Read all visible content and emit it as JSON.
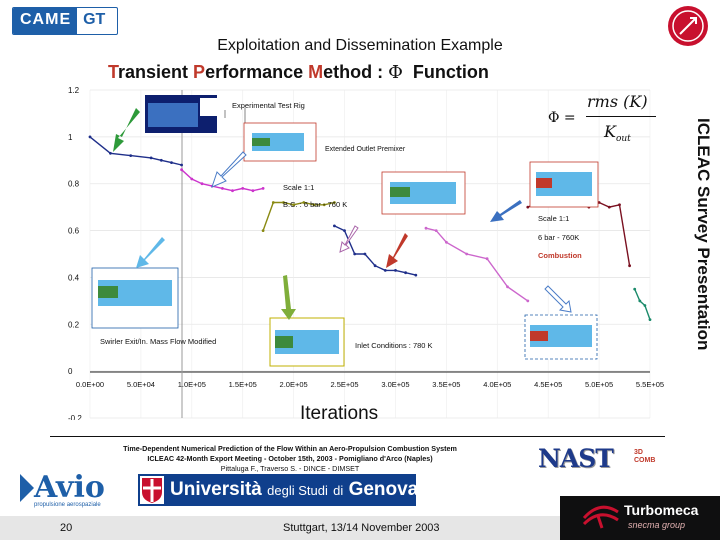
{
  "header": {
    "logo_left": "CAME",
    "logo_right": "GT",
    "slide_title": "Exploitation and Dissemination Example",
    "method_title": {
      "word1_initial": "T",
      "word1_rest": "ransient ",
      "word2_initial": "P",
      "word2_rest": "erformance ",
      "word3_initial": "M",
      "word3_rest": "ethod : ",
      "symbol": "Φ",
      "suffix": "Function"
    },
    "side_title": "ICLEAC Survey Presentation"
  },
  "formula": {
    "lhs": "Φ =",
    "numerator": "rms (K)",
    "denominator": "K",
    "denominator_sub": "out"
  },
  "chart_data": {
    "type": "line",
    "xlabel": "Iterations",
    "xlim": [
      0,
      550000
    ],
    "ylim": [
      -0.2,
      1.2
    ],
    "x_ticks": [
      "0.0E+00",
      "5.0E+04",
      "1.0E+05",
      "1.5E+05",
      "2.0E+05",
      "2.5E+05",
      "3.0E+05",
      "3.5E+05",
      "4.0E+05",
      "4.5E+05",
      "5.0E+05",
      "5.5E+05"
    ],
    "y_ticks": [
      "1.2",
      "1",
      "0.8",
      "0.6",
      "0.4",
      "0.2",
      "0",
      "-0.2"
    ],
    "y_tick_values": [
      1.2,
      1.0,
      0.8,
      0.6,
      0.4,
      0.2,
      0,
      -0.2
    ],
    "colors": {
      "seg1": "#1f2f8a",
      "seg2": "#cc33cc",
      "seg3": "#8a8a12",
      "seg4": "#1f2f8a",
      "seg5": "#cc66cc",
      "seg6": "#7a1020",
      "seg7": "#1a8a6a"
    },
    "series": [
      {
        "id": "seg1",
        "x": [
          0,
          20000,
          40000,
          60000,
          70000,
          80000,
          90000
        ],
        "y": [
          1.0,
          0.93,
          0.92,
          0.91,
          0.9,
          0.89,
          0.88
        ]
      },
      {
        "id": "seg2",
        "x": [
          90000,
          100000,
          110000,
          120000,
          130000,
          140000,
          150000,
          160000,
          170000
        ],
        "y": [
          0.86,
          0.82,
          0.8,
          0.79,
          0.78,
          0.77,
          0.78,
          0.77,
          0.78
        ]
      },
      {
        "id": "seg3",
        "x": [
          170000,
          180000,
          190000,
          200000,
          210000,
          220000,
          230000,
          240000
        ],
        "y": [
          0.6,
          0.72,
          0.72,
          0.71,
          0.72,
          0.71,
          0.71,
          0.72
        ]
      },
      {
        "id": "seg4",
        "x": [
          240000,
          250000,
          260000,
          270000,
          280000,
          290000,
          300000,
          310000,
          320000
        ],
        "y": [
          0.62,
          0.6,
          0.5,
          0.5,
          0.45,
          0.43,
          0.43,
          0.42,
          0.41
        ]
      },
      {
        "id": "seg5",
        "x": [
          330000,
          340000,
          350000,
          370000,
          390000,
          410000,
          430000
        ],
        "y": [
          0.61,
          0.6,
          0.55,
          0.5,
          0.48,
          0.36,
          0.3
        ]
      },
      {
        "id": "seg6",
        "x": [
          430000,
          440000,
          450000,
          460000,
          470000,
          480000,
          490000,
          500000,
          510000,
          520000,
          530000
        ],
        "y": [
          0.7,
          0.72,
          0.74,
          0.71,
          0.73,
          0.72,
          0.7,
          0.72,
          0.7,
          0.71,
          0.45
        ]
      },
      {
        "id": "seg7",
        "x": [
          535000,
          540000,
          545000,
          550000
        ],
        "y": [
          0.35,
          0.3,
          0.28,
          0.22
        ]
      }
    ],
    "annotations": [
      "Experimental Test Rig",
      "Extended Outlet Premixer",
      "Scale 1:1",
      "B.C. : 6 bar - 760 K",
      "Scale 1:1",
      "6 bar - 760K",
      "Combustion",
      "Swirler Exit/In. Mass Flow Modified",
      "Inlet Conditions : 780 K"
    ]
  },
  "footer": {
    "paper_title": "Time-Dependent Numerical Prediction of the Flow Within an Aero-Propulsion Combustion System",
    "meeting": "ICLEAC 42-Month Export Meeting - October 15th, 2003 - Pomigliano d'Arco (Naples)",
    "authors": "Pittaluga F., Traverso S. - DINCE - DIMSET",
    "nast_logo": "NAST",
    "nast_sub1": "3D",
    "nast_sub2": "COMB",
    "avio_logo": "Avio",
    "avio_sub": "propulsione aerospaziale",
    "unige_word1": "Università",
    "unige_word2": "degli Studi",
    "unige_word3": "di",
    "unige_word4": "Genova",
    "turbomeca_name": "Turbomeca",
    "turbomeca_group": "snecma group",
    "page_number": "20",
    "venue": "Stuttgart, 13/14 November 2003"
  }
}
